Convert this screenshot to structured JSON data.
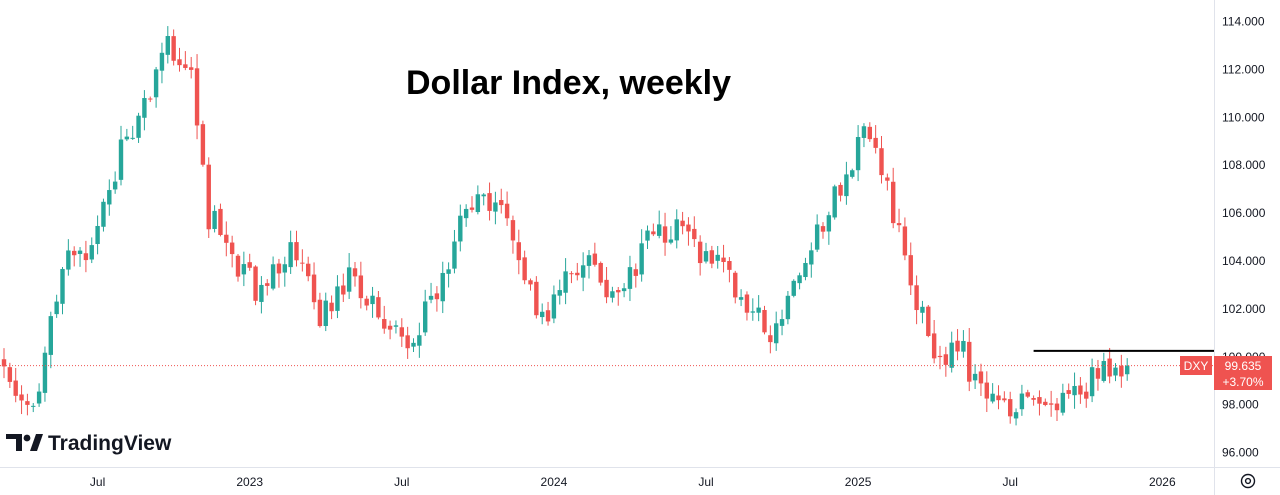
{
  "chart_data": {
    "type": "candlestick",
    "title": "Dollar Index, weekly",
    "symbol": "DXY",
    "last_price": "99.635",
    "change_pct": "+3.70%",
    "resistance_level": 100.25,
    "ylim": [
      95.4,
      114.9
    ],
    "y_ticks": [
      "114.000",
      "112.000",
      "110.000",
      "108.000",
      "106.000",
      "104.000",
      "102.000",
      "100.000",
      "98.000",
      "96.000"
    ],
    "y_tick_values": [
      114,
      112,
      110,
      108,
      106,
      104,
      102,
      100,
      98,
      96
    ],
    "x_ticks": [
      {
        "label": "Jul",
        "week": 16
      },
      {
        "label": "2023",
        "week": 42
      },
      {
        "label": "Jul",
        "week": 68
      },
      {
        "label": "2024",
        "week": 94
      },
      {
        "label": "Jul",
        "week": 120
      },
      {
        "label": "2025",
        "week": 146
      },
      {
        "label": "Jul",
        "week": 172
      },
      {
        "label": "2026",
        "week": 198
      }
    ],
    "close_path": [
      [
        0,
        99.6
      ],
      [
        5,
        97.9
      ],
      [
        10,
        103.8
      ],
      [
        15,
        104.2
      ],
      [
        20,
        108.5
      ],
      [
        24,
        110.3
      ],
      [
        28,
        113.0
      ],
      [
        32,
        111.5
      ],
      [
        35,
        105.9
      ],
      [
        39,
        104.3
      ],
      [
        44,
        102.5
      ],
      [
        49,
        104.8
      ],
      [
        54,
        101.8
      ],
      [
        59,
        103.3
      ],
      [
        66,
        101.0
      ],
      [
        69,
        100.3
      ],
      [
        74,
        102.8
      ],
      [
        79,
        106.3
      ],
      [
        84,
        106.5
      ],
      [
        88,
        104.2
      ],
      [
        92,
        101.5
      ],
      [
        96,
        103.4
      ],
      [
        101,
        103.8
      ],
      [
        105,
        102.3
      ],
      [
        110,
        104.9
      ],
      [
        114,
        105.5
      ],
      [
        119,
        104.2
      ],
      [
        124,
        103.5
      ],
      [
        128,
        101.8
      ],
      [
        131,
        100.8
      ],
      [
        135,
        102.8
      ],
      [
        138,
        104.5
      ],
      [
        143,
        107.3
      ],
      [
        147,
        109.3
      ],
      [
        150,
        107.8
      ],
      [
        154,
        104.3
      ],
      [
        159,
        99.8
      ],
      [
        163,
        100.6
      ],
      [
        167,
        98.5
      ],
      [
        170,
        97.8
      ],
      [
        175,
        98.0
      ],
      [
        179,
        97.7
      ],
      [
        184,
        98.6
      ],
      [
        189,
        99.6
      ],
      [
        192,
        99.635
      ]
    ],
    "legend": "none",
    "grid": false
  },
  "branding": {
    "logo_text": "TradingView",
    "logo_mark": "TV"
  },
  "icons": {
    "settings": "settings-icon"
  },
  "colors": {
    "up": "#26a69a",
    "down": "#ef5350",
    "axis_text": "#131722",
    "resistance": "#000000"
  }
}
